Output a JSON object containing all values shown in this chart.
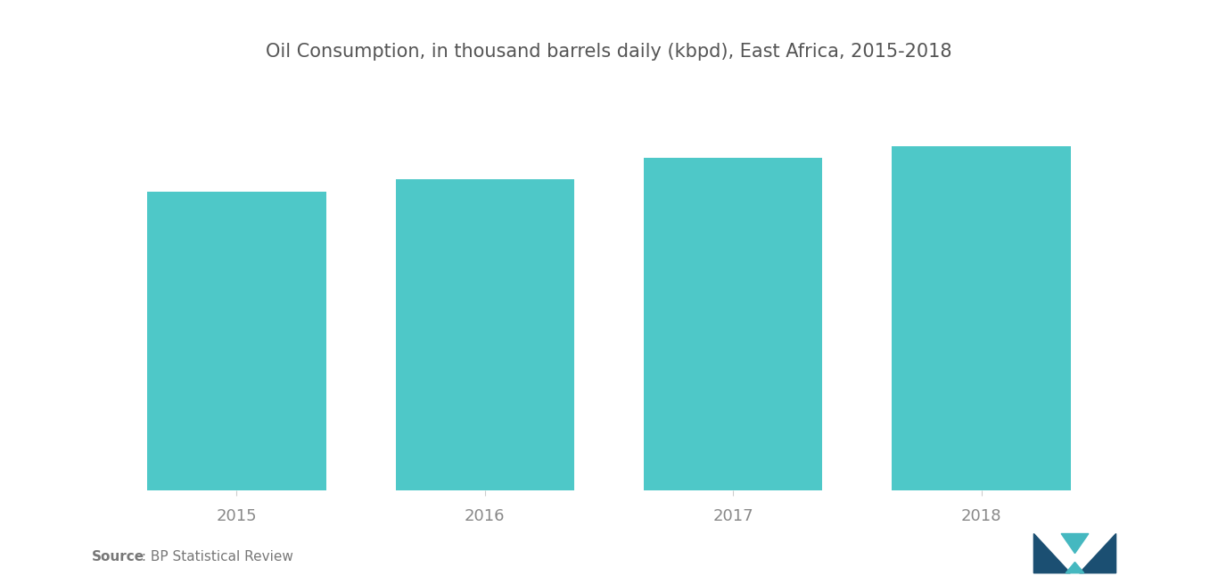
{
  "title": "Oil Consumption, in thousand barrels daily (kbpd), East Africa, 2015-2018",
  "categories": [
    "2015",
    "2016",
    "2017",
    "2018"
  ],
  "values": [
    490,
    510,
    545,
    565
  ],
  "bar_color": "#4EC8C8",
  "background_color": "#ffffff",
  "title_color": "#555555",
  "tick_color": "#888888",
  "title_fontsize": 15,
  "tick_fontsize": 13,
  "source_label_bold": "Source",
  "source_label_rest": " : BP Statistical Review",
  "ylim_min": 0,
  "ylim_max": 650,
  "bar_width": 0.72
}
